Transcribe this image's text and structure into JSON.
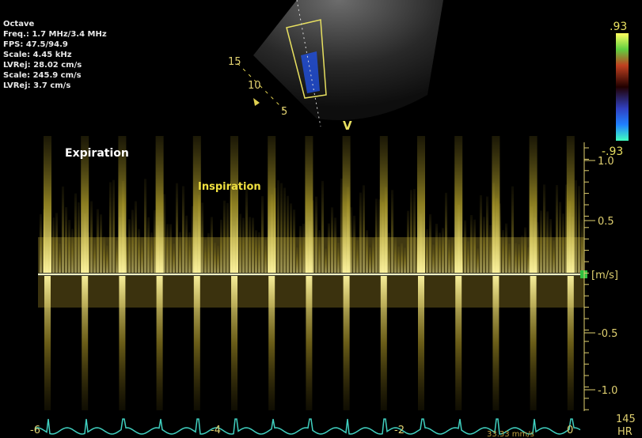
{
  "settings": [
    "Octave",
    "Freq.: 1.7 MHz/3.4 MHz",
    "FPS: 47.5/94.9",
    "Scale: 4.45 kHz",
    "LVRej: 28.02 cm/s",
    "Scale: 245.9 cm/s",
    "LVRej: 3.7 cm/s"
  ],
  "colorbar": {
    "top": ".93",
    "bottom": "-.93"
  },
  "sector": {
    "depths": [
      "15",
      "10",
      "5"
    ],
    "marker": "V"
  },
  "annotations": {
    "expiration": "Expiration",
    "inspiration": "Inspiration"
  },
  "velocity_scale": {
    "ticks": [
      "1.0",
      "0.5",
      "-0.5",
      "-1.0"
    ],
    "unit": "[m/s]"
  },
  "time_axis": {
    "ticks": [
      "-6",
      "-4",
      "-2",
      "0"
    ],
    "sweep": "33.33 mm/s"
  },
  "heart_rate": {
    "value": "145",
    "label": "HR"
  }
}
